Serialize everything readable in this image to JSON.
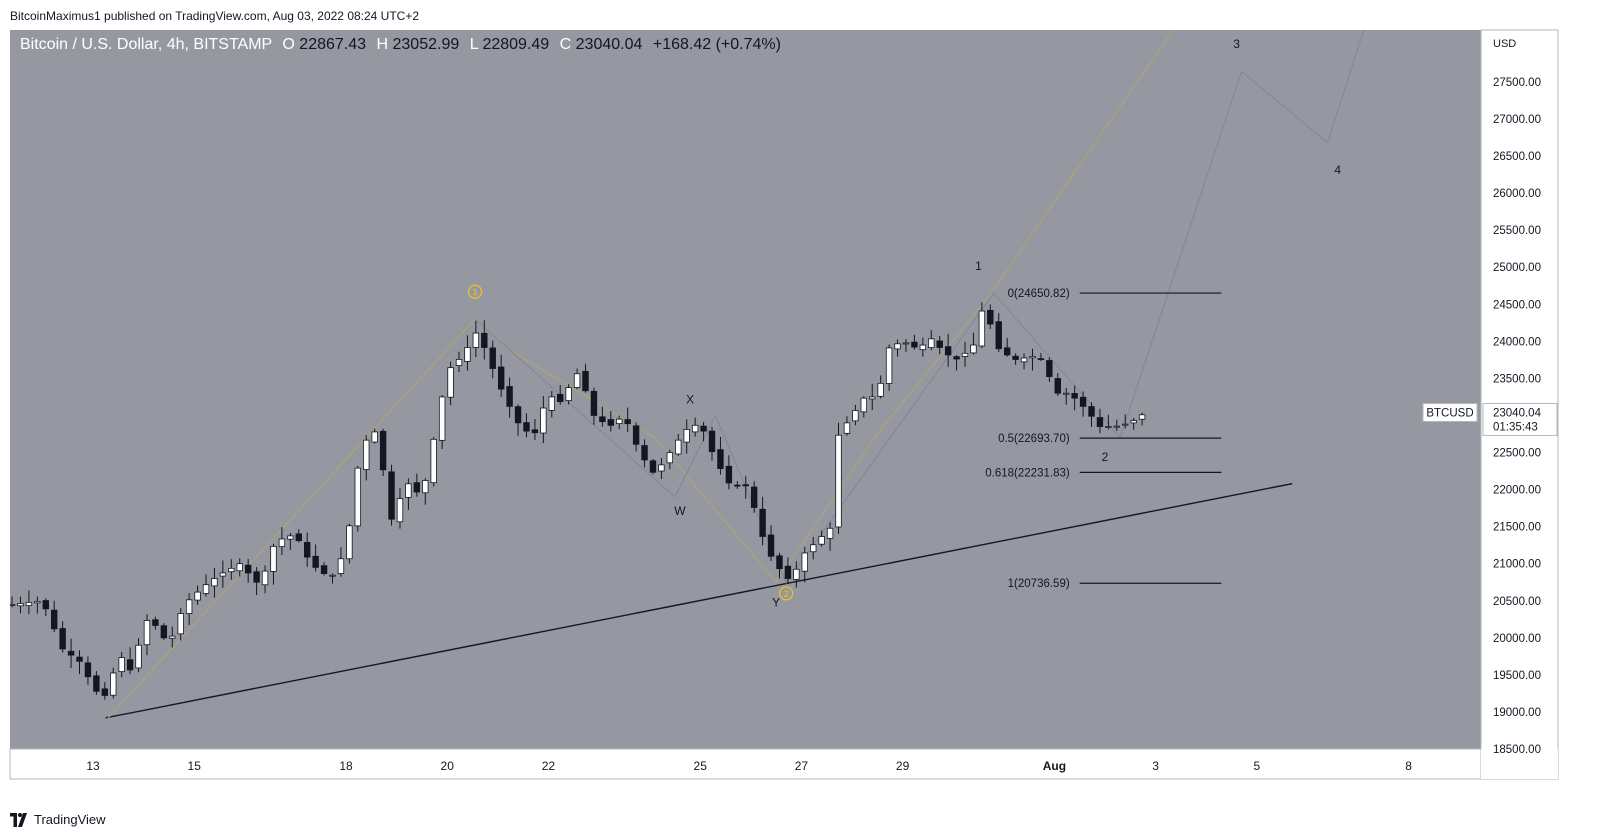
{
  "header": {
    "published_by": "BitcoinMaximus1 published on TradingView.com, Aug 03, 2022 08:24 UTC+2"
  },
  "footer": {
    "brand": "TradingView",
    "logo_icon": "tradingview-logo-icon"
  },
  "symbol_line": {
    "title": "Bitcoin / U.S. Dollar, 4h, BITSTAMP",
    "o_label": "O",
    "o_value": "22867.43",
    "h_label": "H",
    "h_value": "23052.99",
    "l_label": "L",
    "l_value": "22809.49",
    "c_label": "C",
    "c_value": "23040.04",
    "change": "+168.42 (+0.74%)"
  },
  "colors": {
    "plot_bg": "#9598a1",
    "axis_bg": "#ffffff",
    "bull_candle": "#ffffff",
    "bear_candle": "#131722",
    "wave_line": "#b5a36f",
    "projection_line": "#838694",
    "support_line": "#131722",
    "circle_label": "#f0c419"
  },
  "chart_data": {
    "type": "candlestick",
    "symbol": "BTCUSD",
    "timeframe": "4h",
    "currency_label": "USD",
    "ylim": [
      18500,
      28200
    ],
    "y_ticks": [
      "18500.00",
      "19000.00",
      "19500.00",
      "20000.00",
      "20500.00",
      "21000.00",
      "21500.00",
      "22000.00",
      "22500.00",
      "23000.00",
      "23500.00",
      "24000.00",
      "24500.00",
      "25000.00",
      "25500.00",
      "26000.00",
      "26500.00",
      "27000.00",
      "27500.00"
    ],
    "x_ticks": [
      {
        "label": "13",
        "t": 0.0
      },
      {
        "label": "15",
        "t": 2.0
      },
      {
        "label": "18",
        "t": 5.0
      },
      {
        "label": "20",
        "t": 7.0
      },
      {
        "label": "22",
        "t": 9.0
      },
      {
        "label": "25",
        "t": 12.0
      },
      {
        "label": "27",
        "t": 14.0
      },
      {
        "label": "29",
        "t": 16.0
      },
      {
        "label": "Aug",
        "t": 19.0
      },
      {
        "label": "3",
        "t": 21.0
      },
      {
        "label": "5",
        "t": 23.0
      },
      {
        "label": "8",
        "t": 26.0
      }
    ],
    "anchors": [
      [
        -1.6,
        20450
      ],
      [
        -1.0,
        20500
      ],
      [
        -0.6,
        19850
      ],
      [
        -0.2,
        19650
      ],
      [
        0.0,
        19300
      ],
      [
        0.3,
        19200
      ],
      [
        0.5,
        19850
      ],
      [
        0.7,
        19500
      ],
      [
        1.1,
        20300
      ],
      [
        1.5,
        19900
      ],
      [
        1.8,
        20450
      ],
      [
        2.2,
        20700
      ],
      [
        2.5,
        20850
      ],
      [
        2.9,
        21000
      ],
      [
        3.3,
        20700
      ],
      [
        3.6,
        21300
      ],
      [
        4.0,
        21400
      ],
      [
        4.3,
        21000
      ],
      [
        4.7,
        20800
      ],
      [
        5.0,
        21200
      ],
      [
        5.3,
        22600
      ],
      [
        5.6,
        22800
      ],
      [
        5.9,
        21600
      ],
      [
        6.2,
        22100
      ],
      [
        6.5,
        21900
      ],
      [
        6.8,
        22900
      ],
      [
        7.0,
        23600
      ],
      [
        7.3,
        23800
      ],
      [
        7.6,
        24150
      ],
      [
        7.8,
        23800
      ],
      [
        8.1,
        23300
      ],
      [
        8.4,
        22900
      ],
      [
        8.7,
        22700
      ],
      [
        9.0,
        23300
      ],
      [
        9.2,
        23150
      ],
      [
        9.6,
        23600
      ],
      [
        9.9,
        23000
      ],
      [
        10.2,
        22850
      ],
      [
        10.5,
        23000
      ],
      [
        10.8,
        22500
      ],
      [
        11.1,
        22200
      ],
      [
        11.4,
        22500
      ],
      [
        11.7,
        22800
      ],
      [
        12.0,
        22900
      ],
      [
        12.3,
        22400
      ],
      [
        12.6,
        22050
      ],
      [
        12.9,
        22050
      ],
      [
        13.1,
        21700
      ],
      [
        13.3,
        21200
      ],
      [
        13.6,
        20900
      ],
      [
        13.8,
        20750
      ],
      [
        14.0,
        21100
      ],
      [
        14.3,
        21300
      ],
      [
        14.6,
        21500
      ],
      [
        14.7,
        22700
      ],
      [
        15.0,
        23000
      ],
      [
        15.3,
        23300
      ],
      [
        15.5,
        23200
      ],
      [
        15.7,
        23900
      ],
      [
        16.0,
        24000
      ],
      [
        16.3,
        23900
      ],
      [
        16.6,
        24050
      ],
      [
        16.8,
        23850
      ],
      [
        17.1,
        23750
      ],
      [
        17.4,
        23950
      ],
      [
        17.6,
        24500
      ],
      [
        17.9,
        23900
      ],
      [
        18.2,
        23750
      ],
      [
        18.6,
        23800
      ],
      [
        18.8,
        23750
      ],
      [
        19.0,
        23300
      ],
      [
        19.3,
        23300
      ],
      [
        19.6,
        23100
      ],
      [
        19.9,
        22850
      ],
      [
        20.2,
        22850
      ],
      [
        20.5,
        22900
      ],
      [
        20.8,
        23040
      ]
    ],
    "last_price": "23040.04",
    "countdown": "01:35:43",
    "price_tag_label": "BTCUSD",
    "fib_levels": [
      {
        "label": "0(24650.82)",
        "price": 24650.82
      },
      {
        "label": "0.5(22693.70)",
        "price": 22693.7
      },
      {
        "label": "0.618(22231.83)",
        "price": 22231.83
      },
      {
        "label": "1(20736.59)",
        "price": 20736.59
      }
    ],
    "support_line": [
      [
        0.25,
        18920
      ],
      [
        23.7,
        22080
      ]
    ],
    "wave_channel": [
      [
        0.3,
        18920
      ],
      [
        7.55,
        24300
      ],
      [
        8.2,
        23900
      ],
      [
        11.1,
        22700
      ],
      [
        13.5,
        20750
      ],
      [
        15.5,
        22750
      ],
      [
        17.7,
        24600
      ],
      [
        21.6,
        28450
      ]
    ],
    "projection_path": [
      [
        7.55,
        24300
      ],
      [
        11.5,
        21900
      ],
      [
        12.3,
        23000
      ],
      [
        13.7,
        20740
      ],
      [
        17.8,
        24650
      ],
      [
        20.3,
        22700
      ],
      [
        22.7,
        27640
      ],
      [
        24.4,
        26680
      ],
      [
        25.3,
        28600
      ]
    ],
    "wave_labels": [
      {
        "text": "1",
        "t": 7.55,
        "price": 24400,
        "style": "circle",
        "dy": -20
      },
      {
        "text": "2",
        "t": 13.7,
        "price": 20600,
        "style": "circle",
        "dy": 0
      },
      {
        "text": "W",
        "t": 11.6,
        "price": 21900,
        "style": "plain",
        "dy": 14
      },
      {
        "text": "X",
        "t": 11.8,
        "price": 23050,
        "style": "plain",
        "dy": -12
      },
      {
        "text": "Y",
        "t": 13.5,
        "price": 20720,
        "style": "plain",
        "dy": 18
      },
      {
        "text": "1",
        "t": 17.5,
        "price": 24690,
        "style": "plain",
        "dy": -24
      },
      {
        "text": "2",
        "t": 20.0,
        "price": 22630,
        "style": "plain",
        "dy": 14
      },
      {
        "text": "3",
        "t": 22.6,
        "price": 27900,
        "style": "plain",
        "dy": -8
      },
      {
        "text": "4",
        "t": 24.6,
        "price": 26500,
        "style": "plain",
        "dy": 14
      }
    ]
  }
}
